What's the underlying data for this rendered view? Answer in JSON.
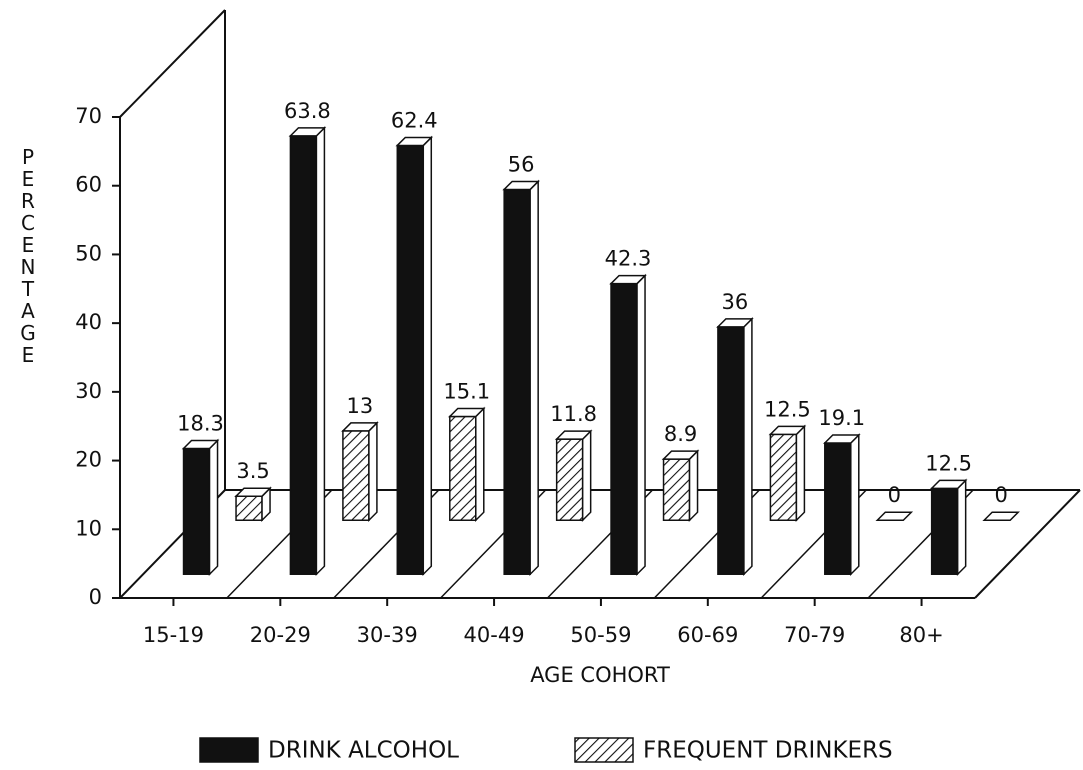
{
  "chart_data": {
    "type": "bar",
    "x_label": "AGE COHORT",
    "y_label": "PERCENTAGE",
    "categories": [
      "15-19",
      "20-29",
      "30-39",
      "40-49",
      "50-59",
      "60-69",
      "70-79",
      "80+"
    ],
    "series": [
      {
        "name": "DRINK ALCOHOL",
        "color": "#111111",
        "values": [
          18.3,
          63.8,
          62.4,
          56,
          42.3,
          36,
          19.1,
          12.5
        ]
      },
      {
        "name": "FREQUENT DRINKERS",
        "color": "hatched",
        "values": [
          3.5,
          13,
          15.1,
          11.8,
          8.9,
          12.5,
          0,
          0
        ]
      }
    ],
    "ylim": [
      0,
      70
    ],
    "yticks": [
      0,
      10,
      20,
      30,
      40,
      50,
      60,
      70
    ]
  }
}
